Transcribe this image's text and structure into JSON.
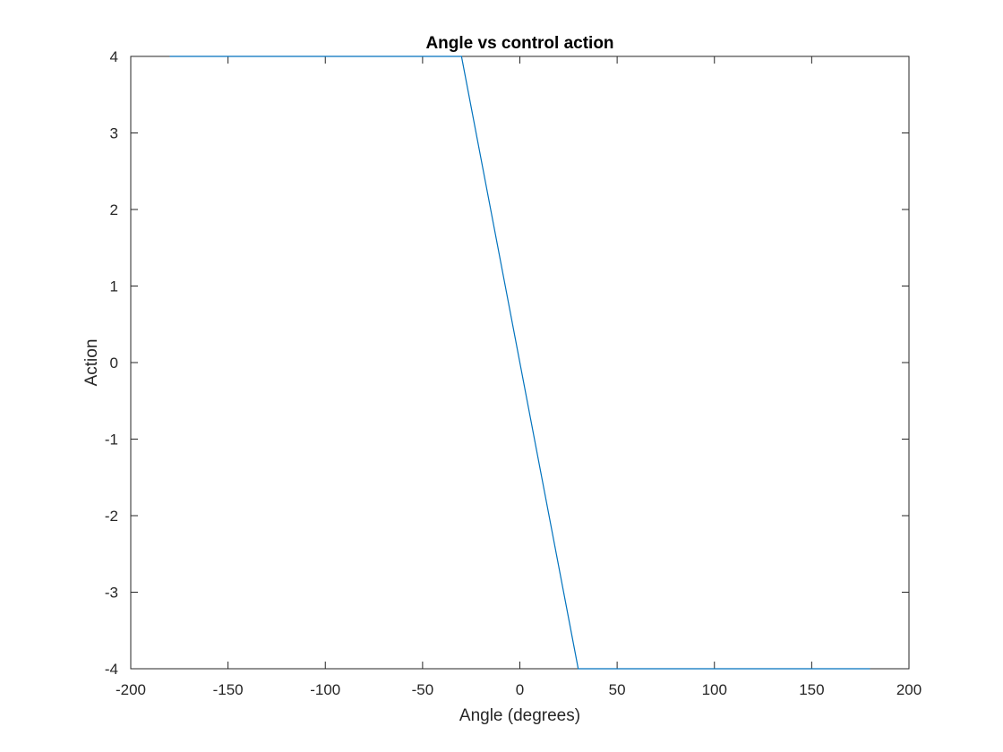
{
  "chart_data": {
    "type": "line",
    "title": "Angle vs control action",
    "xlabel": "Angle (degrees)",
    "ylabel": "Action",
    "xlim": [
      -200,
      200
    ],
    "ylim": [
      -4,
      4
    ],
    "xticks": [
      -200,
      -150,
      -100,
      -50,
      0,
      50,
      100,
      150,
      200
    ],
    "yticks": [
      -4,
      -3,
      -2,
      -1,
      0,
      1,
      2,
      3,
      4
    ],
    "xtick_labels": [
      "-200",
      "-150",
      "-100",
      "-50",
      "0",
      "50",
      "100",
      "150",
      "200"
    ],
    "ytick_labels": [
      "-4",
      "-3",
      "-2",
      "-1",
      "0",
      "1",
      "2",
      "3",
      "4"
    ],
    "grid": false,
    "box": true,
    "series": [
      {
        "color": "#0072BD",
        "x": [
          -180,
          -30,
          30,
          180
        ],
        "y": [
          4,
          4,
          -4,
          -4
        ]
      }
    ]
  }
}
